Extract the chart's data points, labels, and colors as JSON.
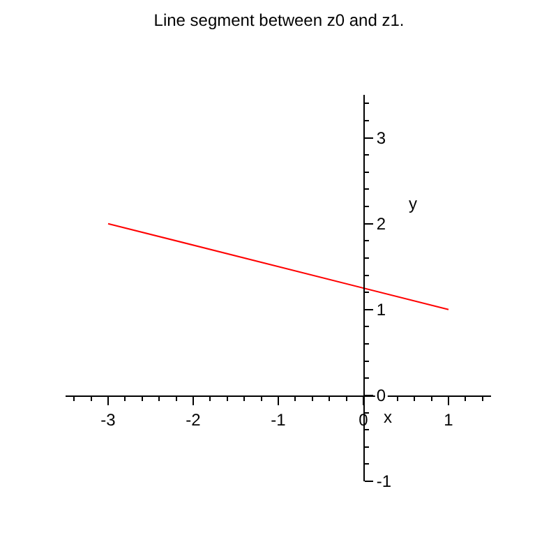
{
  "chart_data": {
    "type": "line",
    "title": "Line segment between z0 and z1.",
    "xlabel": "x",
    "ylabel": "y",
    "x": [
      -3,
      1
    ],
    "series": [
      {
        "color": "#ff0000",
        "values": [
          2,
          1
        ]
      }
    ],
    "xlim": [
      -3.5,
      1.5
    ],
    "xticks": [
      -3,
      -2,
      -1,
      0,
      1
    ],
    "ylim": [
      -1,
      3.5
    ],
    "yticks": [
      -1,
      0,
      1,
      2,
      3
    ],
    "grid": false,
    "marker": "none",
    "line_style": "solid"
  }
}
